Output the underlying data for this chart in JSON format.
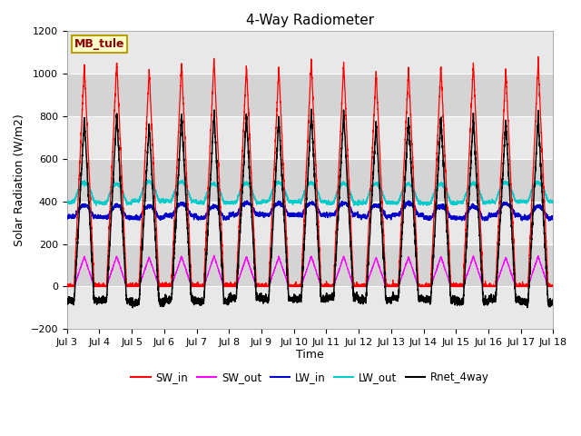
{
  "title": "4-Way Radiometer",
  "ylabel": "Solar Radiation (W/m2)",
  "xlabel": "Time",
  "station_label": "MB_tule",
  "xlim_days": [
    3,
    18
  ],
  "ylim": [
    -200,
    1200
  ],
  "yticks": [
    -200,
    0,
    200,
    400,
    600,
    800,
    1000,
    1200
  ],
  "xtick_labels": [
    "Jul 3",
    "Jul 4",
    "Jul 5",
    "Jul 6",
    "Jul 7",
    "Jul 8",
    "Jul 9",
    "Jul 10",
    "Jul 11",
    "Jul 12",
    "Jul 13",
    "Jul 14",
    "Jul 15",
    "Jul 16",
    "Jul 17",
    "Jul 18"
  ],
  "colors": {
    "SW_in": "#ff0000",
    "SW_out": "#ff00ff",
    "LW_in": "#0000cc",
    "LW_out": "#00cccc",
    "Rnet_4way": "#000000"
  },
  "n_days": 15,
  "start_day": 3,
  "figsize": [
    6.4,
    4.8
  ],
  "dpi": 100,
  "plot_bg_color": "#e8e8e8",
  "grid_color": "#ffffff",
  "band_colors": [
    "#e8e8e8",
    "#d8d8d8"
  ]
}
